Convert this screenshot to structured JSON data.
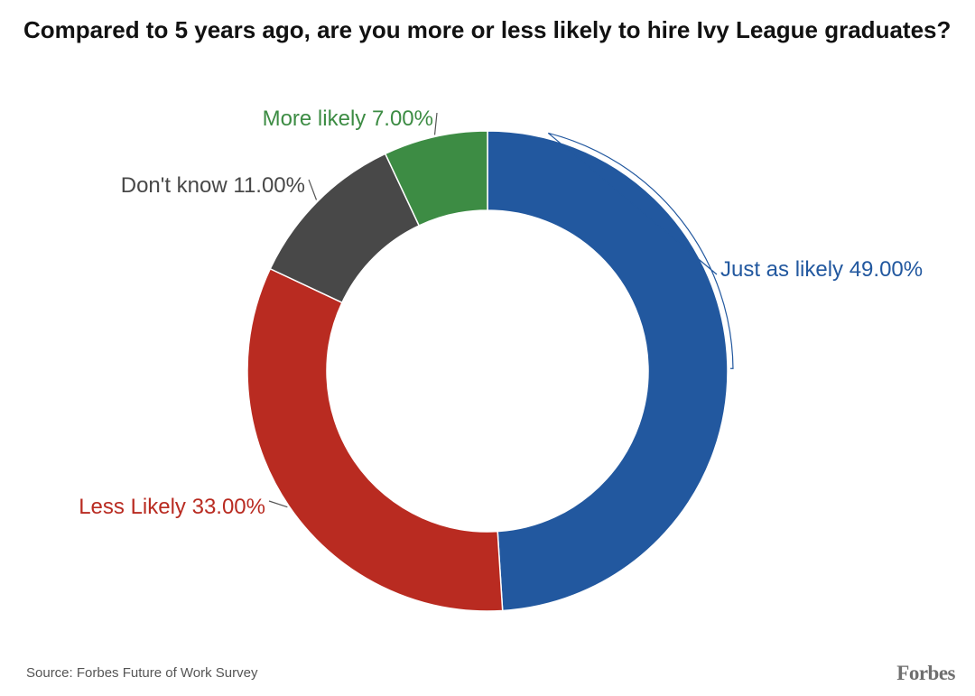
{
  "title": "Compared to 5 years ago, are you more or less likely to hire Ivy League graduates?",
  "source": "Source: Forbes Future of Work Survey",
  "brand": "Forbes",
  "chart_data": {
    "type": "pie",
    "subtype": "donut",
    "title": "Compared to 5 years ago, are you more or less likely to hire Ivy League graduates?",
    "slices": [
      {
        "name": "Just as likely",
        "value": 49.0,
        "label": "Just as likely 49.00%",
        "color": "#22589f"
      },
      {
        "name": "Less Likely",
        "value": 33.0,
        "label": "Less Likely 33.00%",
        "color": "#b92b21"
      },
      {
        "name": "Don't know",
        "value": 11.0,
        "label": "Don't know 11.00%",
        "color": "#484848"
      },
      {
        "name": "More likely",
        "value": 7.0,
        "label": "More likely 7.00%",
        "color": "#3d8c44"
      }
    ],
    "start_angle": "top",
    "direction": "clockwise",
    "legend": "none"
  }
}
